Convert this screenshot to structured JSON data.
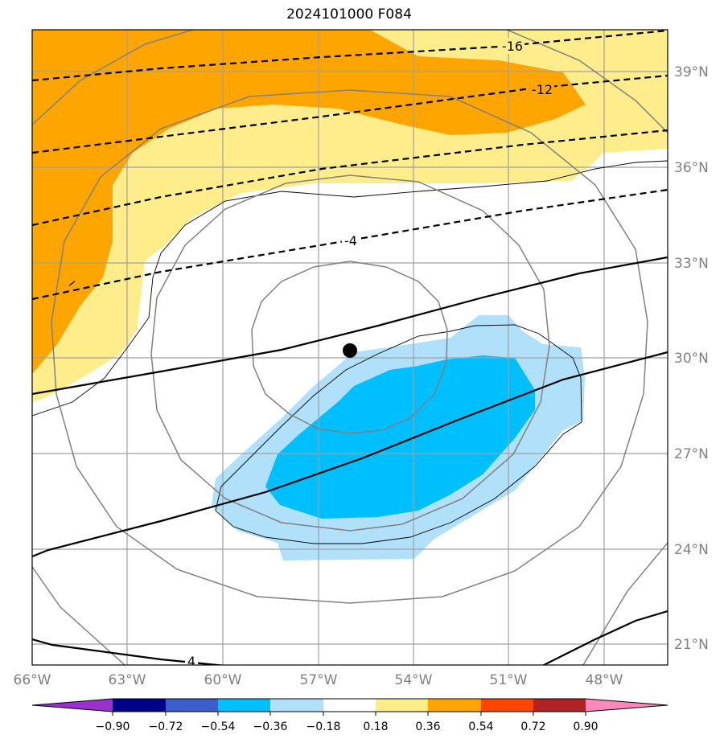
{
  "title": "2024101000 F084",
  "map": {
    "lon_labels": [
      "66°W",
      "63°W",
      "60°W",
      "57°W",
      "54°W",
      "51°W",
      "48°W"
    ],
    "lon_values": [
      -66,
      -63,
      -60,
      -57,
      -54,
      -51,
      -48
    ],
    "lat_labels": [
      "21°N",
      "24°N",
      "27°N",
      "30°N",
      "33°N",
      "36°N",
      "39°N"
    ],
    "lat_values": [
      21,
      24,
      27,
      30,
      33,
      36,
      39
    ],
    "extent": {
      "lon_min": -66,
      "lon_max": -46,
      "lat_min": 20.4,
      "lat_max": 40.4
    },
    "storm_center": {
      "lon": -56,
      "lat": 30.3
    },
    "contour_labels": [
      "-16",
      "-12",
      "-4",
      "4"
    ],
    "colors": {
      "gridline": "#a0a0a0",
      "tick_label": "#808080",
      "pos_light": "#ffec8b",
      "pos_mid": "#ffa500",
      "neg_light": "#b0e0fa",
      "neg_mid": "#00bfff"
    }
  },
  "colorbar": {
    "tick_labels": [
      "−0.90",
      "−0.72",
      "−0.54",
      "−0.36",
      "−0.18",
      "0.18",
      "0.36",
      "0.54",
      "0.72",
      "0.90"
    ],
    "colors": [
      "#9932cc",
      "#00008b",
      "#3a5fcd",
      "#00bfff",
      "#b0e0fa",
      "#ffffff",
      "#ffec8b",
      "#ffa500",
      "#ff4500",
      "#b22222",
      "#ff88bb"
    ]
  }
}
